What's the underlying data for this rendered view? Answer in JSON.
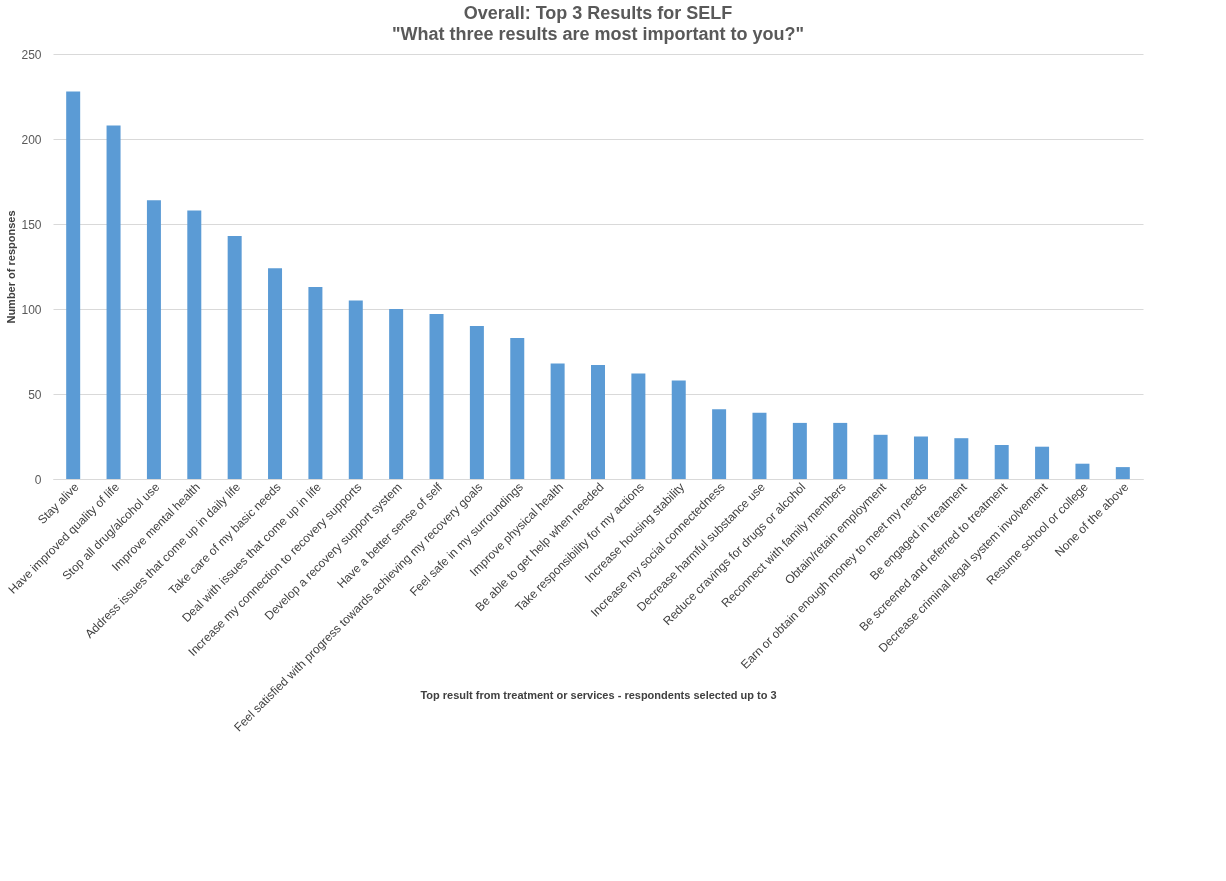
{
  "chart_data": {
    "type": "bar",
    "title": "Overall: Top 3 Results for SELF",
    "subtitle": "\"What three results are most important to you?\"",
    "xlabel": "Top result from treatment or services - respondents selected up to 3",
    "ylabel": "Number of responses",
    "categories": [
      "Stay alive",
      "Have improved quality of life",
      "Stop all drug/alcohol use",
      "Improve mental health",
      "Address issues that come up in daily life",
      "Take care of my basic needs",
      "Deal with issues that come up in life",
      "Increase my connection to recovery supports",
      "Develop a recovery support system",
      "Have a better sense of self",
      "Feel satisfied with progress towards achieving my recovery goals",
      "Feel safe in my surroundings",
      "Improve physical health",
      "Be able to get help when needed",
      "Take responsibility for my actions",
      "Increase housing stability",
      "Increase my social connectedness",
      "Decrease harmful substance use",
      "Reduce cravings for drugs or alcohol",
      "Reconnect with family members",
      "Obtain/retain employment",
      "Earn or obtain enough money to meet my needs",
      "Be engaged in treatment",
      "Be screened and referred to treatment",
      "Decrease criminal legal system involvement",
      "Resume school or college",
      "None of the above"
    ],
    "values": [
      228,
      208,
      164,
      158,
      143,
      124,
      113,
      105,
      100,
      97,
      90,
      83,
      68,
      67,
      62,
      58,
      41,
      39,
      33,
      33,
      26,
      25,
      24,
      20,
      19,
      9,
      7
    ],
    "color": "#5b9bd5",
    "ylim": [
      0,
      250
    ],
    "yticks": [
      0,
      50,
      100,
      150,
      200,
      250
    ],
    "grid": "y"
  }
}
